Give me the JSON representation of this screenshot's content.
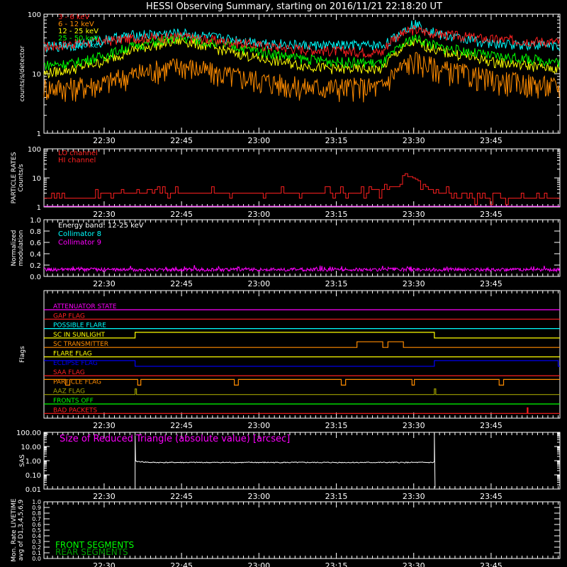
{
  "title": "HESSI Observing Summary, starting on 2016/11/21 22:18:20 UT",
  "time_ticks": [
    "22:30",
    "22:45",
    "23:00",
    "23:15",
    "23:30",
    "23:45"
  ],
  "colors": {
    "bg": "#000000",
    "axis": "#ffffff",
    "red": "#ff2020",
    "orange": "#ff8c00",
    "yellow": "#ffff00",
    "green": "#00ff00",
    "cyan": "#00ffff",
    "magenta": "#ff00ff",
    "blue": "#0000ff",
    "olive": "#a0a000",
    "darkgreen": "#00a000",
    "white": "#ffffff"
  },
  "chart_data": [
    {
      "type": "line",
      "ylabel": "counts/s/detector",
      "ylog": true,
      "ylim": [
        1,
        100
      ],
      "ytick_labels": [
        "1",
        "10",
        "100"
      ],
      "xrange": [
        "22:18:20",
        "23:58:20"
      ],
      "legend": [
        "3 - 6 keV",
        "6 - 12 keV",
        "12 - 25 keV",
        "25 - 50 keV",
        "50 - 100 keV"
      ],
      "series": [
        {
          "name": "3 - 6 keV",
          "color": "#ff2020",
          "x": [
            "22:18",
            "22:24",
            "22:30",
            "22:36",
            "22:45",
            "22:52",
            "23:00",
            "23:08",
            "23:15",
            "23:24",
            "23:26",
            "23:30",
            "23:35",
            "23:45",
            "23:58"
          ],
          "y": [
            28,
            32,
            35,
            40,
            42,
            36,
            30,
            26,
            24,
            23,
            40,
            55,
            46,
            38,
            34
          ]
        },
        {
          "name": "6 - 12 keV",
          "color": "#ff8c00",
          "x": [
            "22:18",
            "22:24",
            "22:30",
            "22:36",
            "22:45",
            "22:52",
            "23:00",
            "23:08",
            "23:15",
            "23:24",
            "23:26",
            "23:30",
            "23:35",
            "23:45",
            "23:58"
          ],
          "y": [
            6,
            6,
            7,
            10,
            14,
            10,
            8,
            6,
            6,
            6,
            10,
            17,
            12,
            8,
            6
          ]
        },
        {
          "name": "12 - 25 keV",
          "color": "#ffff00",
          "x": [
            "22:18",
            "22:24",
            "22:30",
            "22:36",
            "22:45",
            "22:52",
            "23:00",
            "23:08",
            "23:15",
            "23:24",
            "23:26",
            "23:30",
            "23:35",
            "23:45",
            "23:58"
          ],
          "y": [
            10,
            12,
            16,
            26,
            36,
            26,
            18,
            14,
            12,
            12,
            20,
            34,
            24,
            16,
            12
          ]
        },
        {
          "name": "25 - 50 keV",
          "color": "#00ff00",
          "x": [
            "22:18",
            "22:24",
            "22:30",
            "22:36",
            "22:45",
            "22:52",
            "23:00",
            "23:08",
            "23:15",
            "23:24",
            "23:26",
            "23:30",
            "23:35",
            "23:45",
            "23:58"
          ],
          "y": [
            14,
            15,
            20,
            30,
            40,
            32,
            24,
            18,
            16,
            15,
            22,
            40,
            28,
            20,
            16
          ]
        },
        {
          "name": "50 - 100 keV",
          "color": "#00ffff",
          "x": [
            "22:18",
            "22:24",
            "22:30",
            "22:36",
            "22:45",
            "22:52",
            "23:00",
            "23:08",
            "23:15",
            "23:24",
            "23:26",
            "23:30",
            "23:35",
            "23:45",
            "23:58"
          ],
          "y": [
            28,
            30,
            38,
            45,
            48,
            40,
            34,
            30,
            30,
            30,
            38,
            70,
            45,
            32,
            30
          ]
        }
      ]
    },
    {
      "type": "line",
      "ylabel": "PARTICLE RATES\nCounts/s",
      "ylog": true,
      "ylim": [
        1,
        100
      ],
      "ytick_labels": [
        "1",
        "10",
        "100"
      ],
      "legend": [
        "LO channel",
        "HI channel"
      ],
      "series": [
        {
          "name": "LO channel",
          "color": "#ff2020",
          "x": [
            "22:18",
            "22:40",
            "23:00",
            "23:20",
            "23:27",
            "23:29",
            "23:33",
            "23:40",
            "23:58"
          ],
          "y": [
            2,
            3,
            3,
            3,
            5,
            12,
            4,
            2,
            2
          ]
        },
        {
          "name": "HI channel",
          "color": "#ff00ff",
          "x": [
            "22:18",
            "23:58"
          ],
          "y": [
            1,
            1
          ]
        }
      ]
    },
    {
      "type": "line",
      "ylabel": "Normalized\nmodulation",
      "ylim": [
        0,
        1
      ],
      "ytick_labels": [
        "0.0",
        "0.2",
        "0.4",
        "0.6",
        "0.8",
        "1.0"
      ],
      "legend": [
        "Energy band: 12-25 keV",
        "Collimator 8",
        "Collimator 9"
      ],
      "series": [
        {
          "name": "Collimator 9",
          "color": "#ff00ff",
          "x": [
            "22:18",
            "23:58"
          ],
          "y": [
            0.1,
            0.12
          ]
        }
      ]
    },
    {
      "type": "line",
      "ylabel": "Flags",
      "flags": [
        {
          "name": "ATTENUATOR STATE",
          "color": "#ff00ff"
        },
        {
          "name": "GAP FLAG",
          "color": "#ff2020"
        },
        {
          "name": "POSSIBLE FLARE",
          "color": "#00ffff"
        },
        {
          "name": "SC IN SUNLIGHT",
          "color": "#ffff00",
          "high": [
            [
              "22:36",
              "23:34"
            ]
          ]
        },
        {
          "name": "SC TRANSMITTER",
          "color": "#ff8c00",
          "high": [
            [
              "23:19",
              "23:24"
            ],
            [
              "23:25",
              "23:28"
            ]
          ]
        },
        {
          "name": "FLARE FLAG",
          "color": "#ffff00"
        },
        {
          "name": "ECLIPSE FLAG",
          "color": "#0000ff",
          "high": [
            [
              "22:18",
              "22:36"
            ],
            [
              "23:34",
              "23:58"
            ]
          ]
        },
        {
          "name": "SAA FLAG",
          "color": "#ff2020"
        },
        {
          "name": "PARTICLE FLAG",
          "color": "#ff8c00"
        },
        {
          "name": "AAZ FLAG",
          "color": "#a0a000"
        },
        {
          "name": "FRONTS OFF",
          "color": "#00ff00"
        },
        {
          "name": "BAD PACKETS",
          "color": "#ff2020"
        }
      ]
    },
    {
      "type": "line",
      "ylabel": "SAS",
      "ylog": true,
      "ylim": [
        0.01,
        100
      ],
      "ytick_labels": [
        "0.01",
        "0.10",
        "1.00",
        "10.00",
        "100.00"
      ],
      "legend": [
        "Size of Reduced Triangle (absolute value) [arcsec]"
      ],
      "series": [
        {
          "name": "Size of Reduced Triangle (absolute value) [arcsec]",
          "color": "#ffffff",
          "x": [
            "22:36",
            "22:40",
            "23:34"
          ],
          "y": [
            0.9,
            0.75,
            0.75
          ]
        }
      ]
    },
    {
      "type": "line",
      "ylabel": "Mon. Rate LIVETIME\navg of D1,3,4,5,6,9",
      "ylim": [
        0,
        1
      ],
      "ytick_labels": [
        "0.0",
        "0.1",
        "0.2",
        "0.3",
        "0.4",
        "0.5",
        "0.6",
        "0.7",
        "0.8",
        "0.9",
        "1.0"
      ],
      "legend": [
        "FRONT SEGMENTS",
        "REAR SEGMENTS"
      ],
      "series": []
    }
  ]
}
